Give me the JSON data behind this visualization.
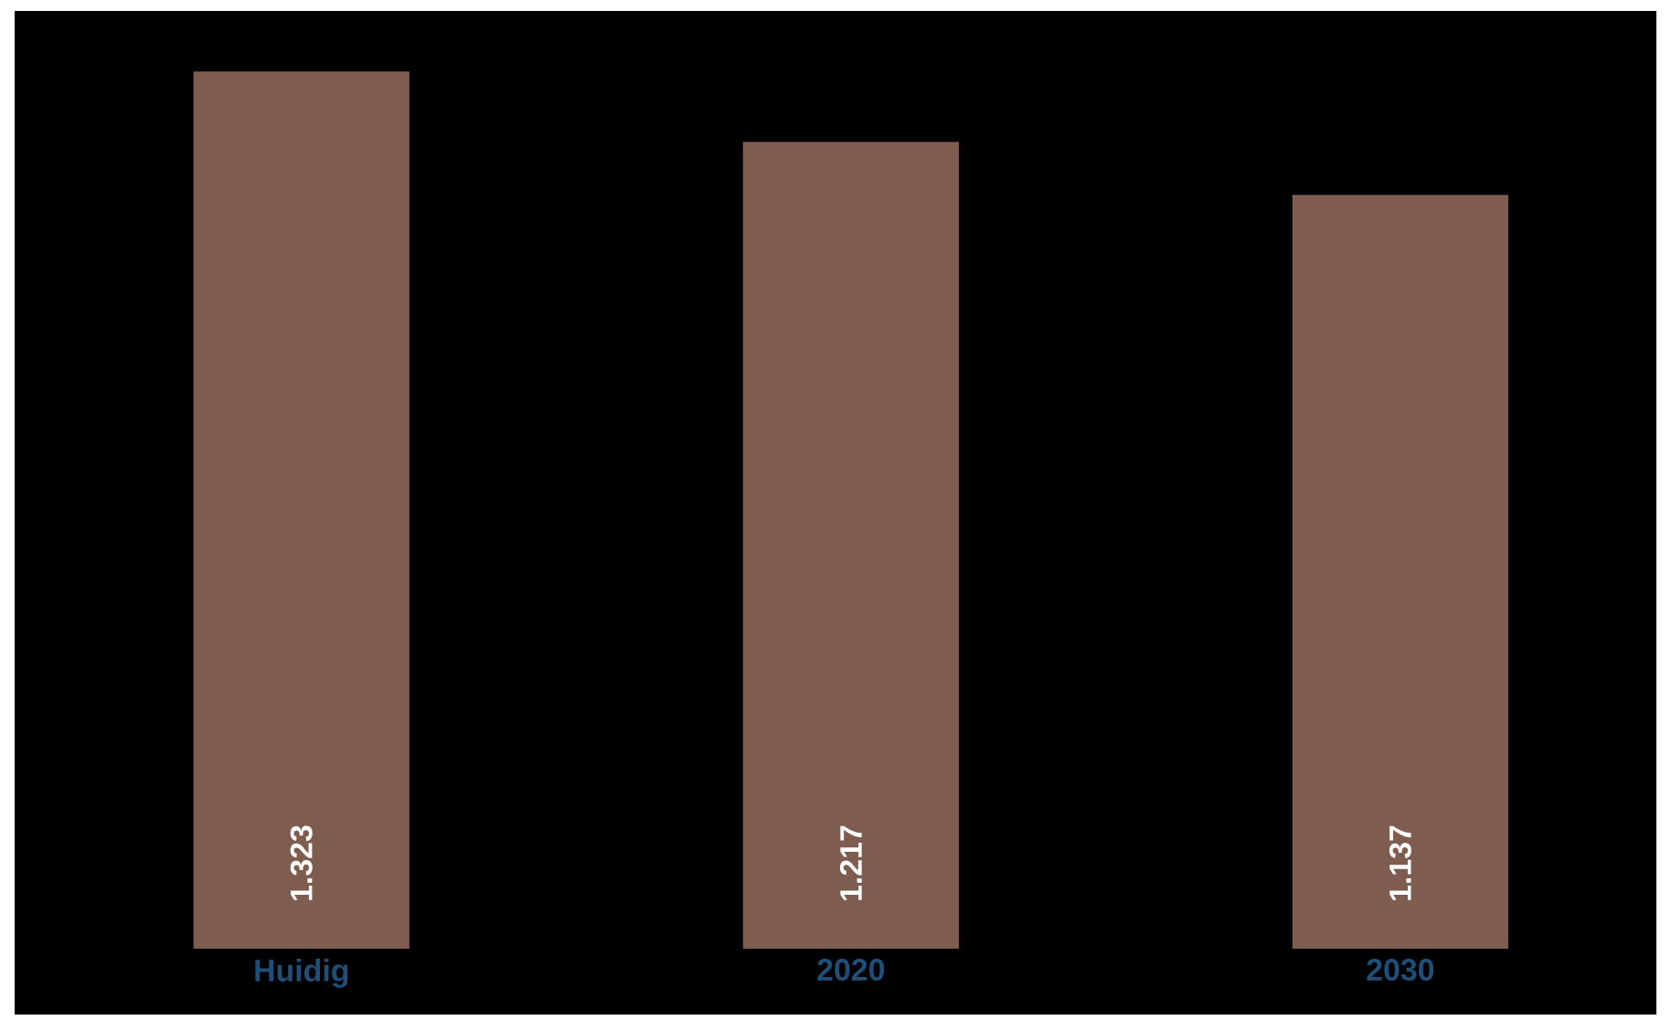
{
  "chart_data": {
    "type": "bar",
    "categories": [
      "Huidig",
      "2020",
      "2030"
    ],
    "values": [
      1323,
      1217,
      1137
    ],
    "value_labels": [
      "1.323",
      "1.217",
      "1.137"
    ],
    "color": "#7e5c4f"
  }
}
